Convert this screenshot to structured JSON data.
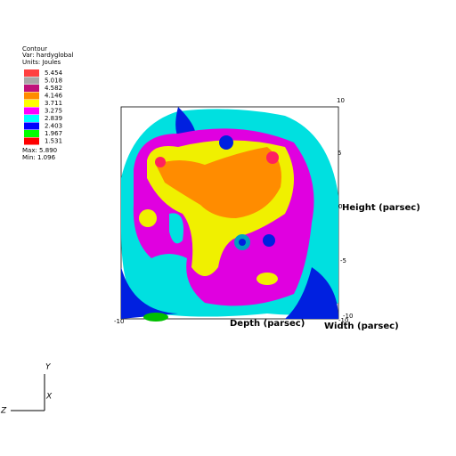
{
  "legend": {
    "title": "Contour",
    "variable": "Var: hardyglobal",
    "units": "Units: Joules",
    "entries": [
      {
        "label": "5.454",
        "color": "#ff4040"
      },
      {
        "label": "5.018",
        "color": "#a8a8a8"
      },
      {
        "label": "4.582",
        "color": "#c0107a"
      },
      {
        "label": "4.146",
        "color": "#ff8c00"
      },
      {
        "label": "3.711",
        "color": "#ffff00"
      },
      {
        "label": "3.275",
        "color": "#ff00ff"
      },
      {
        "label": "2.839",
        "color": "#00ffff"
      },
      {
        "label": "2.403",
        "color": "#0000ff"
      },
      {
        "label": "1.967",
        "color": "#00ff00"
      },
      {
        "label": "1.531",
        "color": "#ff0000"
      }
    ],
    "max": "Max: 5.890",
    "min": "Min: 1.096"
  },
  "axes": {
    "height_label": "Height (parsec)",
    "depth_label": "Depth (parsec)",
    "width_label": "Width (parsec)",
    "height_ticks": [
      "10",
      "5",
      "0",
      "-5",
      "-10"
    ],
    "depth_tick": "-10",
    "width_tick": "-10"
  },
  "triad": {
    "y": "Y",
    "x": "X",
    "z": "Z"
  }
}
